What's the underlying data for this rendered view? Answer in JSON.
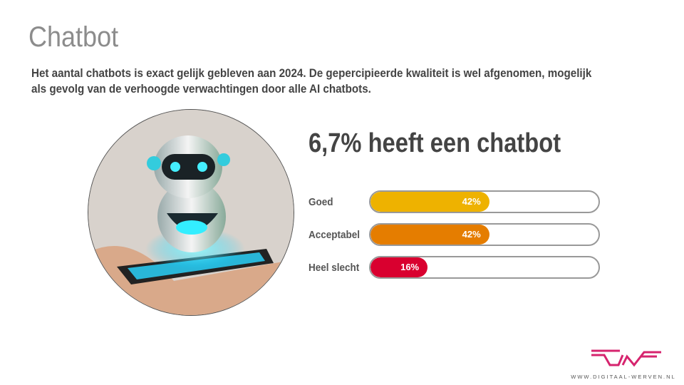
{
  "title": "Chatbot",
  "intro": "Het aantal chatbots is exact gelijk gebleven aan 2024. De gepercipieerde kwaliteit is wel afgenomen, mogelijk als gevolg van de verhoogde verwachtingen door alle AI chatbots.",
  "headline": "6,7% heeft een chatbot",
  "bars": [
    {
      "label": "Goed",
      "value": 42,
      "value_label": "42%",
      "color": "#eeb200"
    },
    {
      "label": "Acceptabel",
      "value": 42,
      "value_label": "42%",
      "color": "#e57d00"
    },
    {
      "label": "Heel slecht",
      "value": 16,
      "value_label": "16%",
      "color": "#d9002f"
    }
  ],
  "logo": {
    "text": "DWF",
    "url": "WWW.DIGITAAL-WERVEN.NL",
    "color": "#d6246e"
  }
}
